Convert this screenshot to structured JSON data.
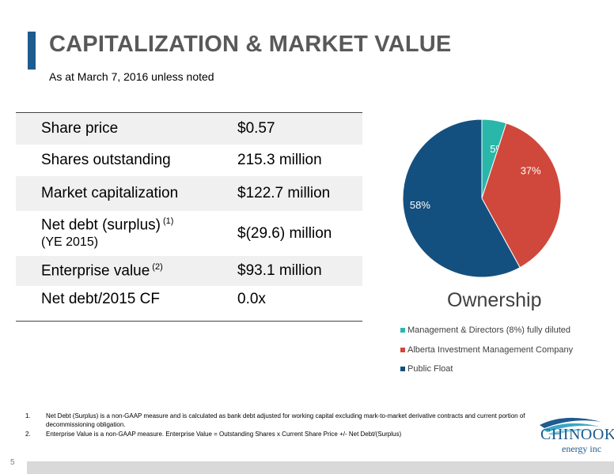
{
  "header": {
    "title": "CAPITALIZATION & MARKET VALUE",
    "subtitle": "As at March 7, 2016 unless noted"
  },
  "table": {
    "rows": [
      {
        "label": "Share price",
        "sup": "",
        "note": "",
        "value": "$0.57"
      },
      {
        "label": "Shares outstanding",
        "sup": "",
        "note": "",
        "value": "215.3 million"
      },
      {
        "label": "Market capitalization",
        "sup": "",
        "note": "",
        "value": "$122.7 million"
      },
      {
        "label": "Net debt (surplus)",
        "sup": "(1)",
        "note": "(YE 2015)",
        "value": "$(29.6) million"
      },
      {
        "label": "Enterprise value",
        "sup": "(2)",
        "note": "",
        "value": "$93.1 million"
      },
      {
        "label": "Net debt/2015 CF",
        "sup": "",
        "note": "",
        "value": "0.0x"
      }
    ]
  },
  "chart_data": {
    "type": "pie",
    "title": "Ownership",
    "slices": [
      {
        "name": "Management & Directors (8%) fully diluted",
        "value": 5,
        "label": "5%",
        "color": "#2ab7a9"
      },
      {
        "name": "Alberta Investment Management Company",
        "value": 37,
        "label": "37%",
        "color": "#d0483b"
      },
      {
        "name": "Public Float",
        "value": 58,
        "label": "58%",
        "color": "#14507f"
      }
    ],
    "legend_position": "bottom"
  },
  "footnotes": [
    {
      "num": "1.",
      "text": "Net Debt (Surplus) is a non-GAAP measure and is calculated as bank debt adjusted for working capital excluding mark-to-market derivative contracts and current portion of decommissioning obligation."
    },
    {
      "num": "2.",
      "text": "Enterprise Value is a non-GAAP measure. Enterprise Value = Outstanding Shares x Current Share Price +/- Net Debt/(Surplus)"
    }
  ],
  "logo": {
    "name": "CHINOOK",
    "sub": "energy inc",
    "color": "#1f5b8e"
  },
  "page": {
    "number": "5"
  }
}
